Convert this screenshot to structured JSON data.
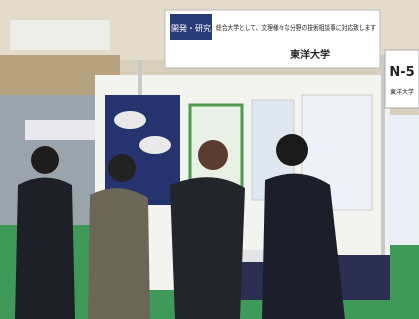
{
  "sign": {
    "category": "開発・研究",
    "message": "総合大学として、文理様々な分野の技術相談事に対応致します",
    "university": "東洋大学"
  },
  "booth": {
    "number": "N-5",
    "university": "東洋大学"
  }
}
